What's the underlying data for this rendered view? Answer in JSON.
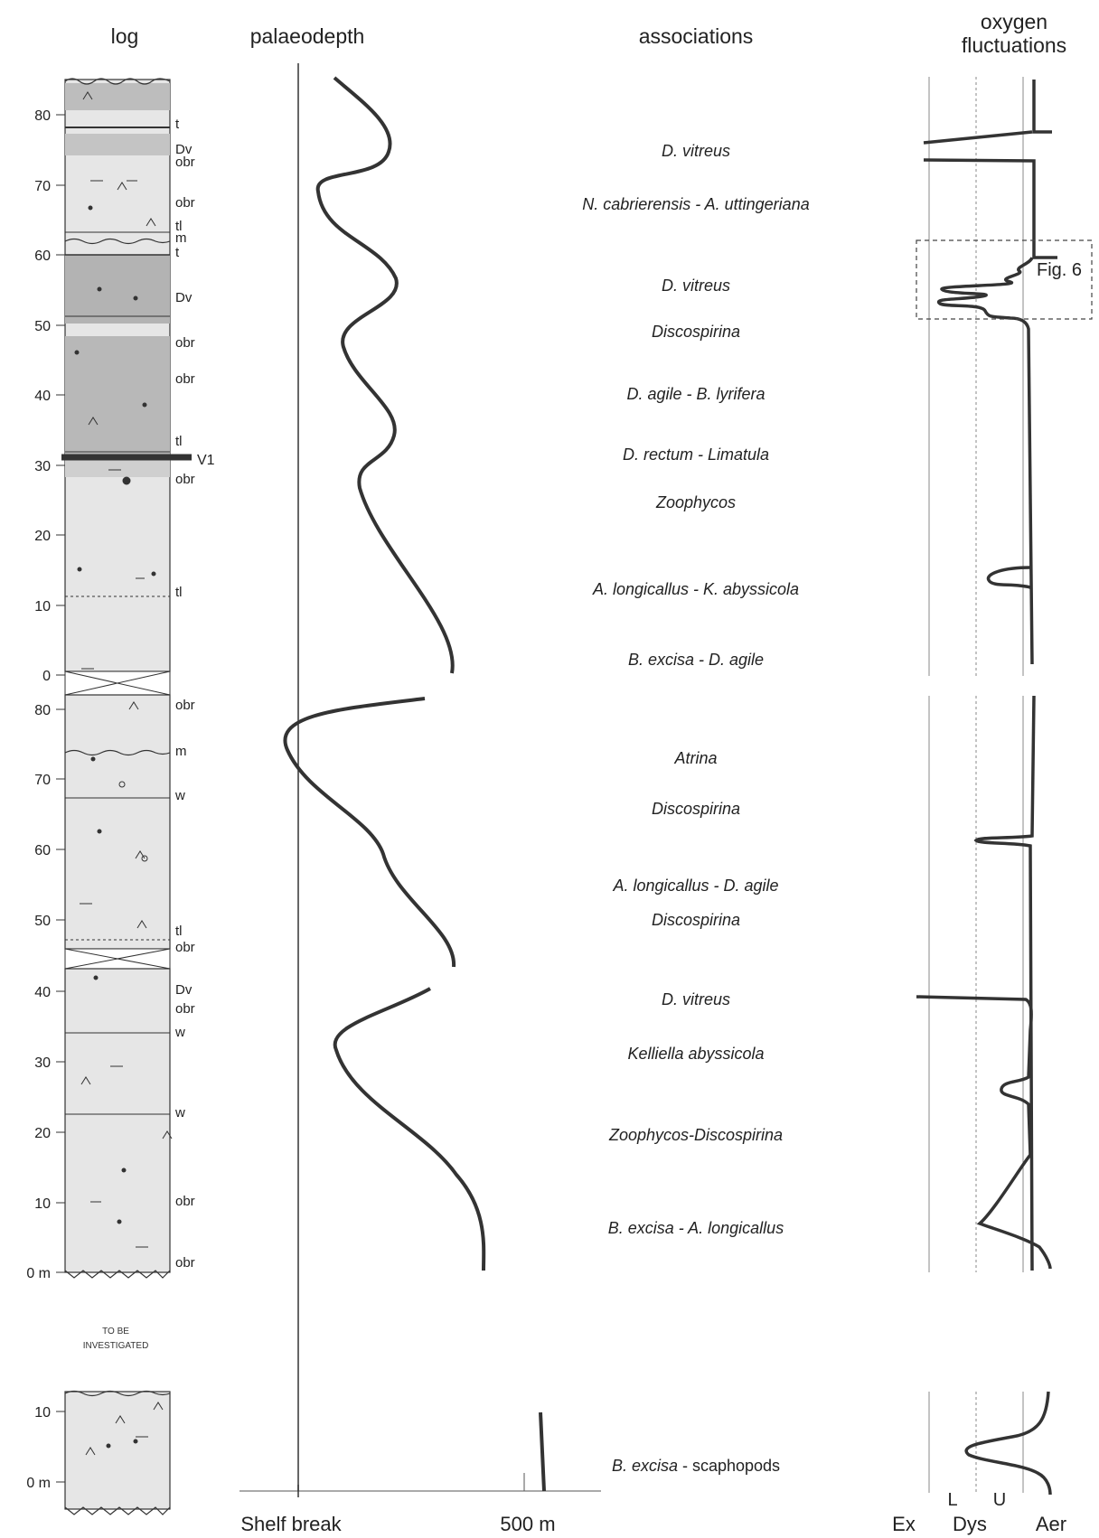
{
  "headers": {
    "log": "log",
    "palaeodepth": "palaeodepth",
    "associations": "associations",
    "oxygen_line1": "oxygen",
    "oxygen_line2": "fluctuations"
  },
  "depth_axis_labels": [
    "80",
    "70",
    "60",
    "50",
    "40",
    "30",
    "20",
    "10",
    "0",
    "80",
    "70",
    "60",
    "50",
    "40",
    "30",
    "20",
    "10",
    "0 m",
    "10",
    "0 m"
  ],
  "lithology_labels": [
    "t",
    "Dv",
    "obr",
    "obr",
    "tl",
    "m",
    "t",
    "Dv",
    "obr",
    "obr",
    "tl",
    "V1",
    "obr",
    "tl",
    "obr",
    "m",
    "w",
    "tl",
    "obr",
    "Dv",
    "obr",
    "w",
    "w",
    "obr",
    "obr"
  ],
  "gap_note": [
    "TO BE",
    "INVESTIGATED"
  ],
  "associations": [
    {
      "text": "D. vitreus",
      "italic": true
    },
    {
      "text": "N. cabrierensis - A. uttingeriana",
      "italic": true
    },
    {
      "text": "D. vitreus",
      "italic": true
    },
    {
      "text": "Discospirina",
      "italic": true
    },
    {
      "text": "D. agile - B. lyrifera",
      "italic": true
    },
    {
      "text": "D. rectum - Limatula",
      "italic": true
    },
    {
      "text": "Zoophycos",
      "italic": true
    },
    {
      "text": "A. longicallus  - K. abyssicola",
      "italic": true
    },
    {
      "text": "B. excisa - D. agile",
      "italic": true
    },
    {
      "text": "Atrina",
      "italic": true
    },
    {
      "text": "Discospirina",
      "italic": true
    },
    {
      "text": "A. longicallus  - D. agile",
      "italic": true
    },
    {
      "text": "Discospirina",
      "italic": true
    },
    {
      "text": "D. vitreus",
      "italic": true
    },
    {
      "text": "Kelliella abyssicola",
      "italic": true
    },
    {
      "text": "Zoophycos-Discospirina",
      "italic": true
    },
    {
      "text": "B. excisa - A. longicallus",
      "italic": true
    },
    {
      "text": "B. excisa",
      "italic": true,
      "suffix": " - scaphopods"
    }
  ],
  "palaeodepth_axis": {
    "shelf_break": "Shelf break",
    "depth_500": "500 m"
  },
  "oxygen_axis": {
    "ex": "Ex",
    "dys": "Dys",
    "aer": "Aer",
    "l": "L",
    "u": "U"
  },
  "inset_label": "Fig. 6",
  "colors": {
    "ink": "#222222",
    "grey_band": "#bdbdbd",
    "light_fill": "#e8e8e8"
  }
}
